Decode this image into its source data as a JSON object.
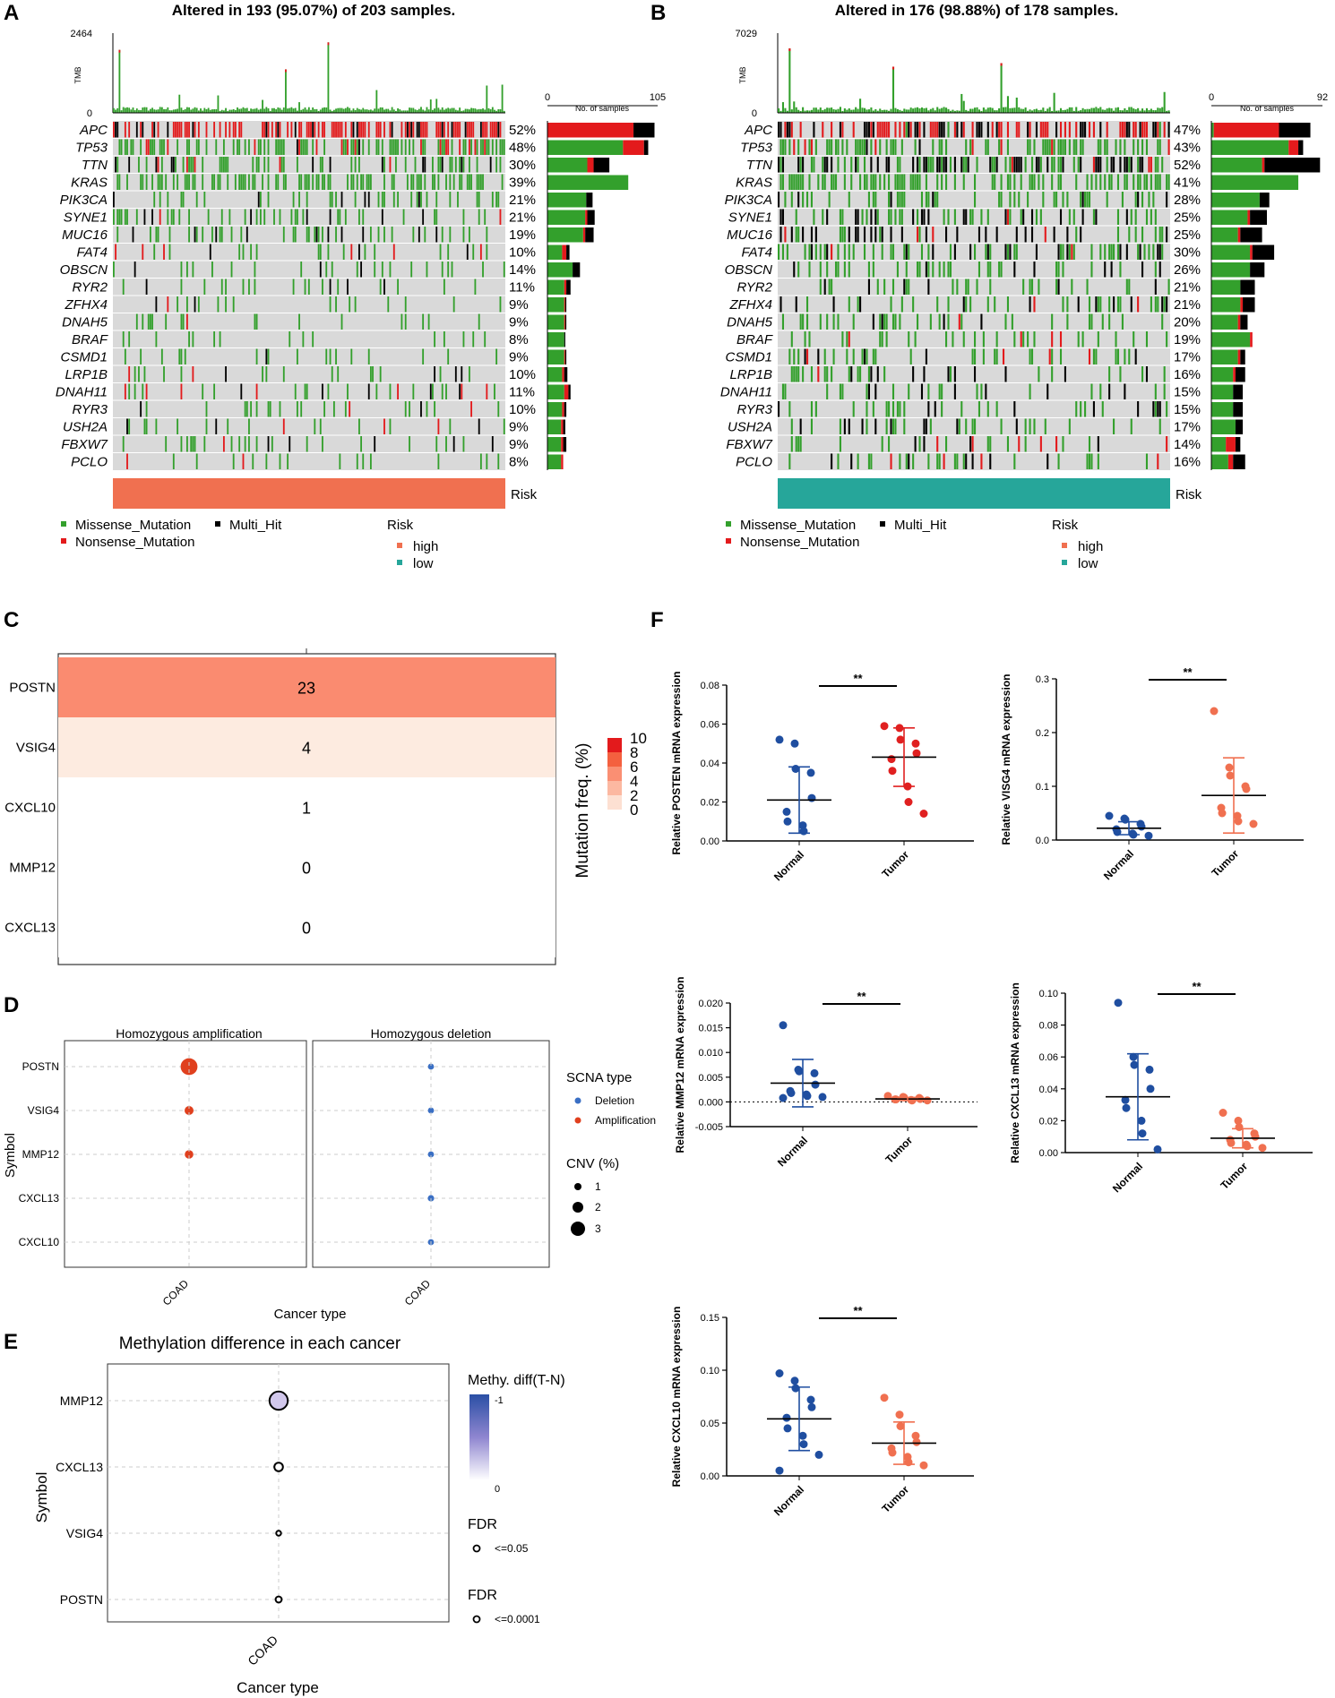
{
  "panels": {
    "a": "A",
    "b": "B",
    "c": "C",
    "d": "D",
    "e": "E",
    "f": "F"
  },
  "colors": {
    "missense": "#33a02c",
    "nonsense": "#e31a1c",
    "multihit": "#000000",
    "empty": "#d9d9d9",
    "risk_high": "#f07050",
    "risk_low": "#26a69a",
    "normal_pts": "#1f4ea0",
    "tumor_red": "#e02020",
    "tumor_orange": "#f07050"
  },
  "oncoprints": [
    {
      "title": "Altered in 193 (95.07%) of 203 samples.",
      "tmb_label": "TMB",
      "tmb_max": "2464",
      "tmb_min": "0",
      "bar_axis_min": "0",
      "bar_axis_max": "105",
      "bar_axis_label": "No. of samples",
      "risk_label": "Risk",
      "genes": [
        "APC",
        "TP53",
        "TTN",
        "KRAS",
        "PIK3CA",
        "SYNE1",
        "MUC16",
        "FAT4",
        "OBSCN",
        "RYR2",
        "ZFHX4",
        "DNAH5",
        "BRAF",
        "CSMD1",
        "LRP1B",
        "DNAH11",
        "RYR3",
        "USH2A",
        "FBXW7",
        "PCLO"
      ],
      "pcts": [
        "52%",
        "48%",
        "30%",
        "39%",
        "21%",
        "21%",
        "19%",
        "10%",
        "14%",
        "11%",
        "9%",
        "9%",
        "8%",
        "9%",
        "10%",
        "11%",
        "10%",
        "9%",
        "9%",
        "8%"
      ],
      "bar_missense": [
        0,
        72,
        38,
        77,
        37,
        36,
        34,
        14,
        24,
        16,
        16,
        16,
        16,
        16,
        14,
        16,
        14,
        13,
        13,
        13
      ],
      "bar_nonsense": [
        82,
        20,
        6,
        0,
        0,
        2,
        2,
        4,
        0,
        2,
        1,
        1,
        0,
        1,
        2,
        4,
        2,
        2,
        2,
        2
      ],
      "bar_multihit": [
        20,
        4,
        15,
        0,
        6,
        7,
        8,
        3,
        7,
        4,
        1,
        1,
        1,
        1,
        3,
        2,
        2,
        2,
        3,
        0
      ]
    },
    {
      "title": "Altered in 176 (98.88%) of 178 samples.",
      "tmb_label": "TMB",
      "tmb_max": "7029",
      "tmb_min": "0",
      "bar_axis_min": "0",
      "bar_axis_max": "92",
      "bar_axis_label": "No. of samples",
      "risk_label": "Risk",
      "genes": [
        "APC",
        "TP53",
        "TTN",
        "KRAS",
        "PIK3CA",
        "SYNE1",
        "MUC16",
        "FAT4",
        "OBSCN",
        "RYR2",
        "ZFHX4",
        "DNAH5",
        "BRAF",
        "CSMD1",
        "LRP1B",
        "DNAH11",
        "RYR3",
        "USH2A",
        "FBXW7",
        "PCLO"
      ],
      "pcts": [
        "47%",
        "43%",
        "52%",
        "41%",
        "28%",
        "25%",
        "25%",
        "30%",
        "26%",
        "21%",
        "21%",
        "20%",
        "19%",
        "17%",
        "16%",
        "15%",
        "15%",
        "17%",
        "14%",
        "16%"
      ],
      "bar_missense": [
        2,
        64,
        42,
        72,
        40,
        30,
        22,
        32,
        32,
        24,
        24,
        22,
        32,
        22,
        18,
        18,
        18,
        20,
        12,
        14
      ],
      "bar_nonsense": [
        54,
        8,
        2,
        0,
        0,
        2,
        2,
        2,
        0,
        0,
        2,
        2,
        2,
        2,
        2,
        0,
        0,
        0,
        8,
        4
      ],
      "bar_multihit": [
        26,
        4,
        46,
        0,
        8,
        14,
        18,
        18,
        12,
        12,
        10,
        6,
        0,
        4,
        8,
        8,
        8,
        6,
        4,
        10
      ]
    }
  ],
  "legend_ab": {
    "missense": "Missense_Mutation",
    "multihit": "Multi_Hit",
    "nonsense": "Nonsense_Mutation",
    "risk_title": "Risk",
    "high": "high",
    "low": "low"
  },
  "chart_data": [
    {
      "panel": "C",
      "type": "heatmap",
      "genes": [
        "POSTN",
        "VSIG4",
        "CXCL10",
        "MMP12",
        "CXCL13"
      ],
      "values": [
        23,
        4,
        1,
        0,
        0
      ],
      "colorbar_title": "Mutation freq. (%)",
      "colorbar_ticks": [
        "10",
        "8",
        "6",
        "4",
        "2",
        "0"
      ]
    },
    {
      "panel": "D",
      "type": "scatter",
      "facets": [
        "Homozygous amplification",
        "Homozygous deletion"
      ],
      "genes": [
        "POSTN",
        "VSIG4",
        "MMP12",
        "CXCL13",
        "CXCL10"
      ],
      "amplification_cnv": [
        3.0,
        1.1,
        1.0,
        0,
        0
      ],
      "deletion_cnv": [
        0.6,
        0.6,
        0.6,
        0.75,
        0.6
      ],
      "xlabel": "Cancer type",
      "ylabel": "Symbol",
      "xtick": "COAD",
      "legend_title": "SCNA type",
      "legend_deletion": "Deletion",
      "legend_amplification": "Amplification",
      "size_title": "CNV (%)",
      "size_labels": [
        "1",
        "2",
        "3"
      ]
    },
    {
      "panel": "E",
      "type": "scatter",
      "title": "Methylation difference in each cancer",
      "genes": [
        "MMP12",
        "CXCL13",
        "VSIG4",
        "POSTN"
      ],
      "methy_diff": [
        -0.22,
        0,
        0,
        0
      ],
      "point_size": [
        3,
        1.4,
        0.8,
        1.0
      ],
      "xlabel": "Cancer type",
      "ylabel": "Symbol",
      "xtick": "COAD",
      "colorbar_title": "Methy. diff(T-N)",
      "colorbar_ticks": [
        "-1",
        "0"
      ],
      "fdr_title_1": "FDR",
      "fdr_label_1": "<=0.05",
      "fdr_title_2": "FDR",
      "fdr_label_2": "<=0.0001"
    },
    {
      "panel": "F",
      "type": "scatter",
      "subtype": "dot-plot mean±SD",
      "plots": [
        {
          "ylabel": "Relative POSTEN mRNA expression",
          "ylim": [
            0,
            0.08
          ],
          "ticks": [
            "0.00",
            "0.02",
            "0.04",
            "0.06",
            "0.08"
          ],
          "categories": [
            "Normal",
            "Tumor"
          ],
          "sig": "**",
          "tumor_color": "tumor_red",
          "normal": [
            0.052,
            0.05,
            0.037,
            0.035,
            0.022,
            0.015,
            0.01,
            0.008,
            0.005
          ],
          "tumor": [
            0.059,
            0.058,
            0.052,
            0.05,
            0.045,
            0.042,
            0.036,
            0.028,
            0.02,
            0.014
          ],
          "normal_mean": 0.021,
          "normal_sd": 0.017,
          "tumor_mean": 0.043,
          "tumor_sd": 0.015
        },
        {
          "ylabel": "Relative VISG4 mRNA expression",
          "ylim": [
            0,
            0.3
          ],
          "ticks": [
            "0.0",
            "0.1",
            "0.2",
            "0.3"
          ],
          "categories": [
            "Normal",
            "Tumor"
          ],
          "sig": "**",
          "tumor_color": "tumor_orange",
          "normal": [
            0.045,
            0.04,
            0.038,
            0.03,
            0.025,
            0.02,
            0.015,
            0.012,
            0.01,
            0.008
          ],
          "tumor": [
            0.24,
            0.135,
            0.12,
            0.1,
            0.095,
            0.06,
            0.05,
            0.045,
            0.035,
            0.03
          ],
          "normal_mean": 0.022,
          "normal_sd": 0.012,
          "tumor_mean": 0.083,
          "tumor_sd": 0.07
        },
        {
          "ylabel": "Relative MMP12 mRNA expression",
          "ylim": [
            -0.005,
            0.02
          ],
          "ticks": [
            "-0.005",
            "0.000",
            "0.005",
            "0.010",
            "0.015",
            "0.020"
          ],
          "categories": [
            "Normal",
            "Tumor"
          ],
          "sig": "**",
          "tumor_color": "tumor_orange",
          "zero_line": true,
          "normal": [
            0.0155,
            0.0065,
            0.0062,
            0.0058,
            0.0035,
            0.0022,
            0.0018,
            0.0015,
            0.0012,
            0.001,
            0.0008
          ],
          "tumor": [
            0.0012,
            0.001,
            0.0009,
            0.0008,
            0.0006,
            0.0005,
            0.0005,
            0.0004,
            0.0003,
            0.0003
          ],
          "normal_mean": 0.0038,
          "normal_sd": 0.0048,
          "tumor_mean": 0.0006,
          "tumor_sd": 0.0003
        },
        {
          "ylabel": "Relative CXCL13  mRNA expression",
          "ylim": [
            0,
            0.1
          ],
          "ticks": [
            "0.00",
            "0.02",
            "0.04",
            "0.06",
            "0.08",
            "0.10"
          ],
          "categories": [
            "Normal",
            "Tumor"
          ],
          "sig": "**",
          "tumor_color": "tumor_orange",
          "normal": [
            0.094,
            0.06,
            0.055,
            0.052,
            0.04,
            0.033,
            0.028,
            0.02,
            0.012,
            0.002
          ],
          "tumor": [
            0.025,
            0.02,
            0.016,
            0.012,
            0.01,
            0.008,
            0.006,
            0.005,
            0.004,
            0.003
          ],
          "normal_mean": 0.035,
          "normal_sd": 0.027,
          "tumor_mean": 0.009,
          "tumor_sd": 0.006
        },
        {
          "ylabel": "Relative CXCL10 mRNA expression",
          "ylim": [
            0,
            0.15
          ],
          "ticks": [
            "0.00",
            "0.05",
            "0.10",
            "0.15"
          ],
          "categories": [
            "Normal",
            "Tumor"
          ],
          "sig": "**",
          "tumor_color": "tumor_orange",
          "normal": [
            0.097,
            0.09,
            0.083,
            0.072,
            0.065,
            0.055,
            0.045,
            0.038,
            0.03,
            0.02,
            0.005
          ],
          "tumor": [
            0.074,
            0.058,
            0.047,
            0.038,
            0.032,
            0.026,
            0.022,
            0.018,
            0.013,
            0.01
          ],
          "normal_mean": 0.054,
          "normal_sd": 0.03,
          "tumor_mean": 0.031,
          "tumor_sd": 0.02
        }
      ]
    }
  ]
}
